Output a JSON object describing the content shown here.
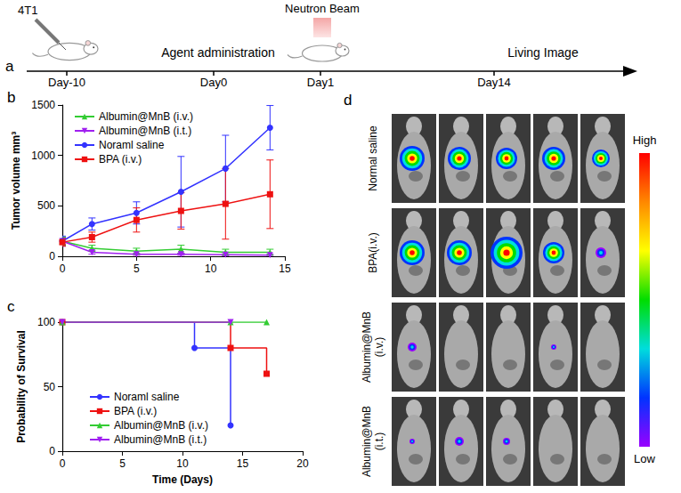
{
  "timeline": {
    "letter": "a",
    "cell_line": "4T1",
    "beam": "Neutron Beam",
    "events": [
      {
        "day": "Day-10"
      },
      {
        "day": "Day0",
        "label": "Agent administration"
      },
      {
        "day": "Day1"
      },
      {
        "day": "Day14",
        "label": "Living Image"
      }
    ]
  },
  "chart_data": [
    {
      "letter": "b",
      "type": "line",
      "ylabel": "Tumor volume mm³",
      "xlim": [
        0,
        15
      ],
      "xticks": [
        0,
        5,
        10,
        15
      ],
      "ylim": [
        0,
        1500
      ],
      "yticks": [
        0,
        500,
        1000,
        1500
      ],
      "grid": false,
      "legend": "upper left",
      "series": [
        {
          "name": "Albumin@MnB (i.v.)",
          "color": "#33cc33",
          "marker": "triangle",
          "x": [
            0,
            2,
            5,
            8,
            11,
            14
          ],
          "values": [
            150,
            80,
            50,
            70,
            40,
            40
          ],
          "errors": [
            40,
            30,
            30,
            40,
            30,
            30
          ]
        },
        {
          "name": "Albumin@MnB (i.t.)",
          "color": "#a020f0",
          "marker": "triangle-down",
          "x": [
            0,
            2,
            5,
            8,
            11,
            14
          ],
          "values": [
            150,
            40,
            20,
            20,
            15,
            10
          ],
          "errors": [
            30,
            20,
            10,
            10,
            10,
            10
          ]
        },
        {
          "name": "Noraml saline",
          "color": "#3333ff",
          "marker": "circle",
          "x": [
            0,
            2,
            5,
            8,
            11,
            14
          ],
          "values": [
            150,
            320,
            430,
            640,
            870,
            1275
          ],
          "errors": [
            50,
            60,
            110,
            350,
            330,
            220
          ]
        },
        {
          "name": "BPA (i.v.)",
          "color": "#ee1111",
          "marker": "square",
          "x": [
            0,
            2,
            5,
            8,
            11,
            14
          ],
          "values": [
            140,
            190,
            360,
            450,
            520,
            615
          ],
          "errors": [
            40,
            50,
            120,
            180,
            350,
            340
          ]
        }
      ]
    },
    {
      "letter": "c",
      "type": "line",
      "xlabel": "Time (Days)",
      "ylabel": "Probability of Survival",
      "xlim": [
        0,
        20
      ],
      "xticks": [
        0,
        5,
        10,
        15,
        20
      ],
      "ylim": [
        0,
        100
      ],
      "yticks": [
        0,
        50,
        100
      ],
      "grid": false,
      "legend": "lower left",
      "series": [
        {
          "name": "Noraml saline",
          "color": "#3333ff",
          "marker": "circle",
          "line_style": "step",
          "x": [
            0,
            11,
            14
          ],
          "values": [
            100,
            80,
            20
          ]
        },
        {
          "name": "BPA (i.v.)",
          "color": "#ee1111",
          "marker": "square",
          "line_style": "step",
          "x": [
            0,
            14,
            17
          ],
          "values": [
            100,
            80,
            60
          ]
        },
        {
          "name": "Albumin@MnB (i.v.)",
          "color": "#33cc33",
          "marker": "triangle",
          "line_style": "step",
          "x": [
            0,
            14,
            17
          ],
          "values": [
            100,
            100,
            100
          ]
        },
        {
          "name": "Albumin@MnB (i.t.)",
          "color": "#a020f0",
          "marker": "triangle-down",
          "line_style": "step",
          "x": [
            0,
            14
          ],
          "values": [
            100,
            100
          ]
        }
      ]
    }
  ],
  "images": {
    "letter": "d",
    "rows": [
      "Normal saline",
      "BPA(i.v.)",
      "Albumin@MnB (i.v.)",
      "Albumin@MnB (i.t.)"
    ],
    "columns": 5,
    "colorbar": {
      "high": "High",
      "low": "Low"
    }
  }
}
